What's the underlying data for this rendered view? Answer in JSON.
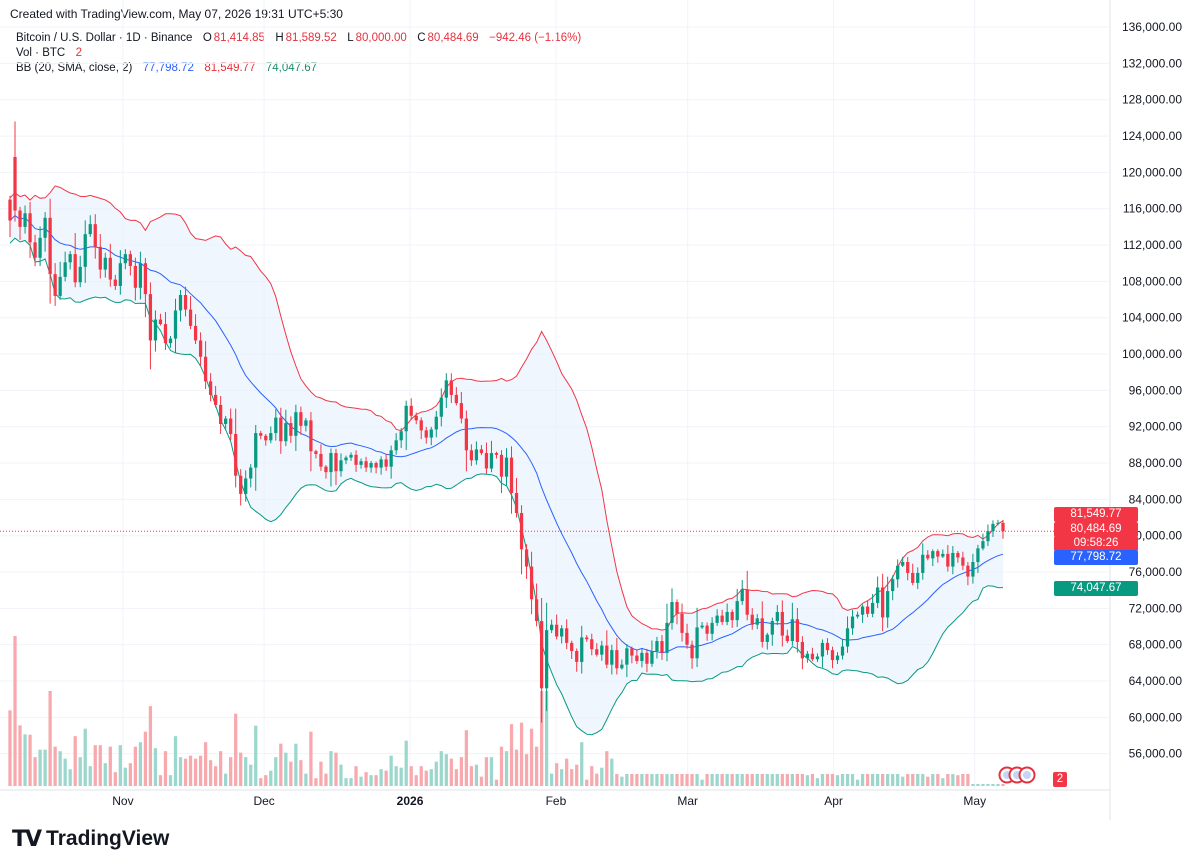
{
  "header": {
    "created": "Created with TradingView.com, May 07, 2026 19:31 UTC+5:30"
  },
  "legend": {
    "symbol": "Bitcoin / U.S. Dollar · 1D · Binance",
    "o_label": "O",
    "o_value": "81,414.85",
    "h_label": "H",
    "h_value": "81,589.52",
    "l_label": "L",
    "l_value": "80,000.00",
    "c_label": "C",
    "c_value": "80,484.69",
    "change": "−942.46 (−1.16%)",
    "vol_label": "Vol · BTC",
    "vol_value": "2",
    "bb_label": "BB (20, SMA, close, 2)",
    "bb_basis": "77,798.72",
    "bb_upper": "81,549.77",
    "bb_lower": "74,047.67"
  },
  "price_tags": {
    "upper": "81,549.77",
    "last": "80,484.69",
    "countdown": "09:58:26",
    "basis": "77,798.72",
    "lower": "74,047.67",
    "volume": "2"
  },
  "colors": {
    "up": "#089981",
    "down": "#f23645",
    "basis": "#2962ff",
    "upper": "#f23645",
    "lower": "#089981",
    "band_fill": "#e3effd"
  },
  "brand": {
    "name": "TradingView"
  },
  "chart_data": {
    "type": "candlestick",
    "y_ticks": [
      "136,000.00",
      "132,000.00",
      "128,000.00",
      "124,000.00",
      "120,000.00",
      "116,000.00",
      "112,000.00",
      "108,000.00",
      "104,000.00",
      "100,000.00",
      "96,000.00",
      "92,000.00",
      "88,000.00",
      "84,000.00",
      "80,000.00",
      "76,000.00",
      "72,000.00",
      "68,000.00",
      "64,000.00",
      "60,000.00",
      "56,000.00"
    ],
    "ylim": [
      52000,
      137000
    ],
    "x_ticks": [
      "Nov",
      "Dec",
      "2026",
      "Feb",
      "Mar",
      "Apr",
      "May"
    ],
    "x_tick_dates": [
      "2025-11-01",
      "2025-12-01",
      "2026-01-01",
      "2026-02-01",
      "2026-03-01",
      "2026-04-01",
      "2026-05-01"
    ],
    "x_range": [
      "2025-10-08",
      "2026-05-07"
    ],
    "price_line": 80484.69,
    "closes": [
      [
        117000,
        114700
      ],
      [
        121700,
        115800
      ],
      [
        115800,
        114000
      ],
      [
        114000,
        115500
      ],
      [
        115500,
        112300
      ],
      [
        112300,
        110600
      ],
      [
        110600,
        112800
      ],
      [
        112800,
        115000
      ],
      [
        115000,
        108800
      ],
      [
        108800,
        106400
      ],
      [
        106400,
        108500
      ],
      [
        108500,
        110100
      ],
      [
        110100,
        111000
      ],
      [
        111000,
        107900
      ],
      [
        107900,
        109600
      ],
      [
        109600,
        113200
      ],
      [
        113200,
        114300
      ],
      [
        114300,
        111800
      ],
      [
        111800,
        109300
      ],
      [
        109300,
        110600
      ],
      [
        110600,
        108200
      ],
      [
        108200,
        107500
      ],
      [
        107500,
        110000
      ],
      [
        110000,
        111000
      ],
      [
        111000,
        109700
      ],
      [
        109700,
        107300
      ],
      [
        107300,
        110000
      ],
      [
        110000,
        106600
      ],
      [
        106600,
        101500
      ],
      [
        101500,
        103800
      ],
      [
        103800,
        103300
      ],
      [
        103300,
        101200
      ],
      [
        101200,
        101700
      ],
      [
        101700,
        104800
      ],
      [
        104800,
        106500
      ],
      [
        106500,
        104900
      ],
      [
        104900,
        103100
      ],
      [
        103100,
        101500
      ],
      [
        101500,
        99700
      ],
      [
        99700,
        97000
      ],
      [
        97000,
        95500
      ],
      [
        95500,
        94400
      ],
      [
        94400,
        92300
      ],
      [
        92300,
        92900
      ],
      [
        92900,
        91200
      ],
      [
        91200,
        86600
      ],
      [
        86600,
        84600
      ],
      [
        84600,
        86300
      ],
      [
        86300,
        87500
      ],
      [
        87500,
        91300
      ],
      [
        91300,
        91000
      ],
      [
        91000,
        90500
      ],
      [
        90500,
        91300
      ],
      [
        91300,
        93000
      ],
      [
        93000,
        90400
      ],
      [
        90400,
        92400
      ],
      [
        92400,
        91000
      ],
      [
        91000,
        93600
      ],
      [
        93600,
        92100
      ],
      [
        92100,
        92700
      ],
      [
        92700,
        89300
      ],
      [
        89300,
        89000
      ],
      [
        89000,
        87600
      ],
      [
        87600,
        87000
      ],
      [
        87000,
        89100
      ],
      [
        89100,
        87100
      ],
      [
        87100,
        88300
      ],
      [
        88300,
        88600
      ],
      [
        88600,
        88900
      ],
      [
        88900,
        87800
      ],
      [
        87800,
        88200
      ],
      [
        88200,
        87500
      ],
      [
        87500,
        88000
      ],
      [
        88000,
        87500
      ],
      [
        87500,
        88400
      ],
      [
        88400,
        87600
      ],
      [
        87600,
        89400
      ],
      [
        89400,
        90500
      ],
      [
        90500,
        91500
      ],
      [
        91500,
        94300
      ],
      [
        94300,
        93200
      ],
      [
        93200,
        92700
      ],
      [
        92700,
        91600
      ],
      [
        91600,
        90800
      ],
      [
        90800,
        91700
      ],
      [
        91700,
        93100
      ],
      [
        93100,
        95200
      ],
      [
        95200,
        97100
      ],
      [
        97100,
        95500
      ],
      [
        95500,
        94600
      ],
      [
        94600,
        92900
      ],
      [
        92900,
        89400
      ],
      [
        89400,
        88300
      ],
      [
        88300,
        89500
      ],
      [
        89500,
        89100
      ],
      [
        89100,
        87400
      ],
      [
        87400,
        89100
      ],
      [
        89100,
        88900
      ],
      [
        88900,
        86500
      ],
      [
        86500,
        88600
      ],
      [
        88600,
        84700
      ],
      [
        84700,
        82500
      ],
      [
        82500,
        78500
      ],
      [
        78500,
        76600
      ],
      [
        76600,
        73000
      ],
      [
        73000,
        70600
      ],
      [
        70600,
        63200
      ],
      [
        63200,
        69600
      ],
      [
        69600,
        70200
      ],
      [
        70200,
        68900
      ],
      [
        68900,
        69800
      ],
      [
        69800,
        68200
      ],
      [
        68200,
        67300
      ],
      [
        67300,
        66100
      ],
      [
        66100,
        68800
      ],
      [
        68800,
        68600
      ],
      [
        68600,
        67500
      ],
      [
        67500,
        66900
      ],
      [
        66900,
        67900
      ],
      [
        67900,
        65800
      ],
      [
        65800,
        67400
      ],
      [
        67400,
        65400
      ],
      [
        65400,
        65800
      ],
      [
        65800,
        67600
      ],
      [
        67600,
        66800
      ],
      [
        66800,
        66200
      ],
      [
        66200,
        67100
      ],
      [
        67100,
        65900
      ],
      [
        65900,
        67300
      ],
      [
        67300,
        68400
      ],
      [
        68400,
        67100
      ],
      [
        67100,
        70400
      ],
      [
        70400,
        72700
      ],
      [
        72700,
        71400
      ],
      [
        71400,
        69300
      ],
      [
        69300,
        68000
      ],
      [
        68000,
        66500
      ],
      [
        66500,
        69900
      ],
      [
        69900,
        70100
      ],
      [
        70100,
        69200
      ],
      [
        69200,
        70400
      ],
      [
        70400,
        71200
      ],
      [
        71200,
        70500
      ],
      [
        70500,
        71600
      ],
      [
        71600,
        70700
      ],
      [
        70700,
        72800
      ],
      [
        72800,
        74100
      ],
      [
        74100,
        71300
      ],
      [
        71300,
        70200
      ],
      [
        70200,
        70900
      ],
      [
        70900,
        68300
      ],
      [
        68300,
        69100
      ],
      [
        69100,
        70600
      ],
      [
        70600,
        71600
      ],
      [
        71600,
        69000
      ],
      [
        69000,
        68400
      ],
      [
        68400,
        70800
      ],
      [
        70800,
        68300
      ],
      [
        68300,
        66500
      ],
      [
        66500,
        67000
      ],
      [
        67000,
        66400
      ],
      [
        66400,
        66700
      ],
      [
        66700,
        68200
      ],
      [
        68200,
        67400
      ],
      [
        67400,
        66300
      ],
      [
        66300,
        66800
      ],
      [
        66800,
        67800
      ],
      [
        67800,
        69800
      ],
      [
        69800,
        71100
      ],
      [
        71100,
        71300
      ],
      [
        71300,
        72200
      ],
      [
        72200,
        71400
      ],
      [
        71400,
        72600
      ],
      [
        72600,
        74300
      ],
      [
        74300,
        71000
      ],
      [
        71000,
        73900
      ],
      [
        73900,
        75200
      ],
      [
        75200,
        76700
      ],
      [
        76700,
        77100
      ],
      [
        77100,
        75900
      ],
      [
        75900,
        74800
      ],
      [
        74800,
        75900
      ],
      [
        75900,
        77900
      ],
      [
        77900,
        77500
      ],
      [
        77500,
        78300
      ],
      [
        78300,
        77700
      ],
      [
        77700,
        78000
      ],
      [
        78000,
        76600
      ],
      [
        76600,
        78100
      ],
      [
        78100,
        77600
      ],
      [
        77600,
        76700
      ],
      [
        76700,
        75500
      ],
      [
        75500,
        77100
      ],
      [
        77100,
        78600
      ],
      [
        78600,
        79400
      ],
      [
        79400,
        80500
      ],
      [
        80500,
        81300
      ],
      [
        81300,
        81414
      ],
      [
        81414,
        80484
      ]
    ]
  }
}
